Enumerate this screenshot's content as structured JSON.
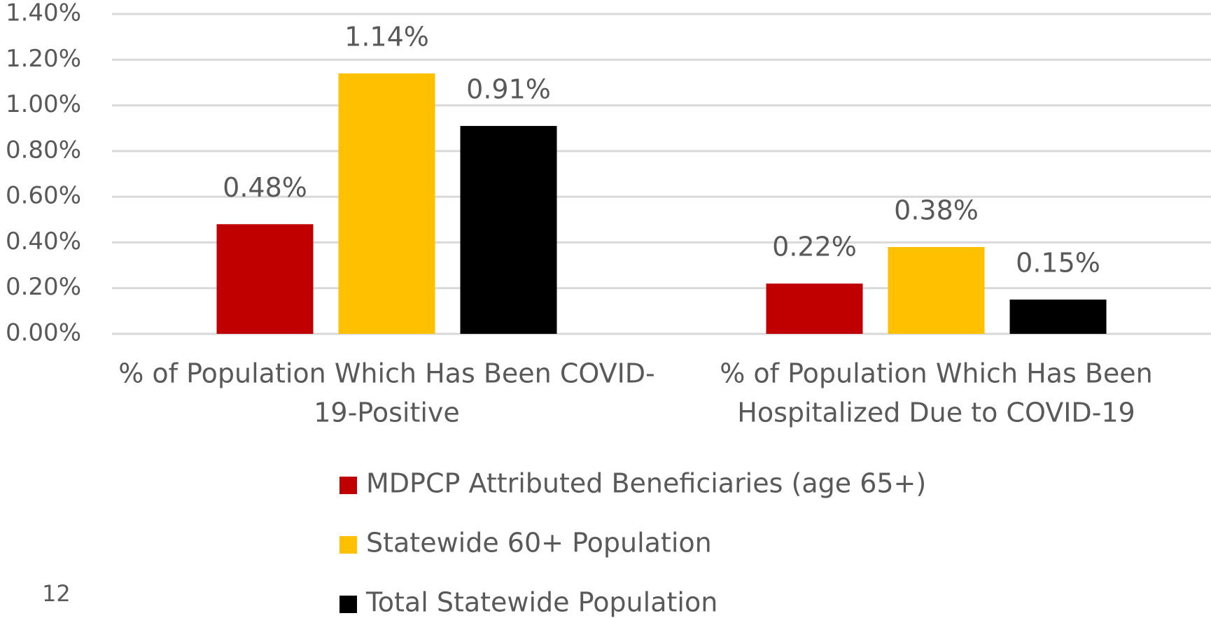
{
  "chart_data": {
    "type": "bar",
    "categories": [
      [
        "% of Population Which Has Been COVID-",
        "19-Positive"
      ],
      [
        "% of Population Which Has Been",
        "Hospitalized Due to COVID-19"
      ]
    ],
    "series": [
      {
        "name": "MDPCP Attributed Beneficiaries (age 65+)",
        "color": "#c00000",
        "values": [
          0.48,
          0.22
        ],
        "value_labels": [
          "0.48%",
          "0.22%"
        ]
      },
      {
        "name": "Statewide 60+ Population",
        "color": "#ffc000",
        "values": [
          1.14,
          0.38
        ],
        "value_labels": [
          "1.14%",
          "0.38%"
        ]
      },
      {
        "name": "Total Statewide Population",
        "color": "#000000",
        "values": [
          0.91,
          0.15
        ],
        "value_labels": [
          "0.91%",
          "0.15%"
        ]
      }
    ],
    "ylim": [
      0,
      1.4
    ],
    "yticks": [
      {
        "value": 0,
        "label": "0.00%"
      },
      {
        "value": 0.2,
        "label": "0.20%"
      },
      {
        "value": 0.4,
        "label": "0.40%"
      },
      {
        "value": 0.6,
        "label": "0.60%"
      },
      {
        "value": 0.8,
        "label": "0.80%"
      },
      {
        "value": 1.0,
        "label": "1.00%"
      },
      {
        "value": 1.2,
        "label": "1.20%"
      },
      {
        "value": 1.4,
        "label": "1.40%"
      }
    ],
    "grid": true,
    "legend": "bottom"
  },
  "page_number": "12"
}
